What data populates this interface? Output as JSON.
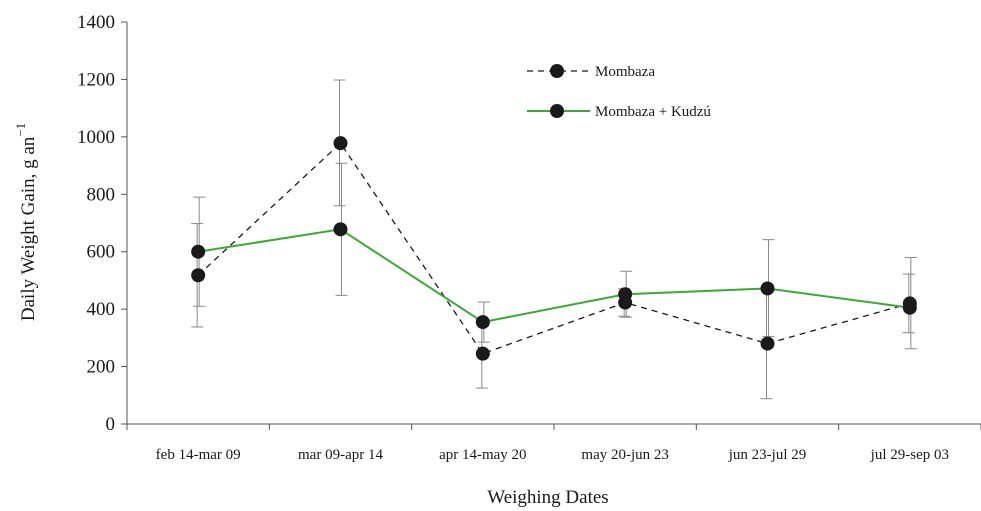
{
  "chart_data": {
    "type": "line",
    "title": "",
    "xlabel": "Weighing Dates",
    "ylabel": "Daily Weight Gain, g an",
    "ylabel_superscript": "−1",
    "ylim": [
      0,
      1400
    ],
    "yticks": [
      0,
      200,
      400,
      600,
      800,
      1000,
      1200,
      1400
    ],
    "grid": false,
    "legend_position": "top-center",
    "categories": [
      "feb 14-mar 09",
      "mar 09-apr 14",
      "apr 14-may 20",
      "may 20-jun 23",
      "jun 23-jul 29",
      "jul 29-sep 03"
    ],
    "series": [
      {
        "name": "Mombaza",
        "color": "#1a1a1a",
        "line_style": "dashed",
        "values": [
          518,
          978,
          245,
          423,
          280,
          420
        ],
        "error_low": [
          338,
          760,
          125,
          375,
          88,
          318
        ],
        "error_high": [
          698,
          1198,
          365,
          471,
          472,
          522
        ]
      },
      {
        "name": "Mombaza + Kudzú",
        "color": "#3aaa35",
        "line_style": "solid",
        "values": [
          600,
          678,
          355,
          452,
          472,
          405
        ],
        "error_low": [
          410,
          448,
          285,
          372,
          305,
          262
        ],
        "error_high": [
          790,
          908,
          425,
          532,
          642,
          580
        ]
      }
    ]
  }
}
